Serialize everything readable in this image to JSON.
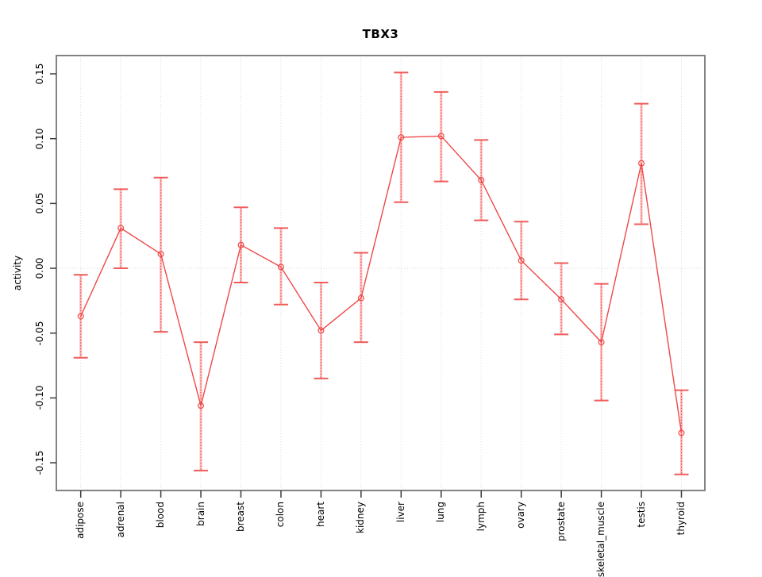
{
  "page": {
    "background": "#ffffff"
  },
  "chart_data": {
    "type": "line",
    "title": "TBX3",
    "ylabel": "activity",
    "xlabel": "",
    "categories": [
      "adipose",
      "adrenal",
      "blood",
      "brain",
      "breast",
      "colon",
      "heart",
      "kidney",
      "liver",
      "lung",
      "lymph",
      "ovary",
      "prostate",
      "skeletal_muscle",
      "testis",
      "thyroid"
    ],
    "series": [
      {
        "name": "TBX3 activity",
        "marker": "open-circle",
        "values": [
          -0.037,
          0.031,
          0.011,
          -0.106,
          0.018,
          0.001,
          -0.048,
          -0.023,
          0.101,
          0.102,
          0.068,
          0.006,
          -0.024,
          -0.057,
          0.081,
          -0.127
        ],
        "lower": [
          -0.069,
          0.0,
          -0.049,
          -0.156,
          -0.011,
          -0.028,
          -0.085,
          -0.057,
          0.051,
          0.067,
          0.037,
          -0.024,
          -0.051,
          -0.102,
          0.034,
          -0.159
        ],
        "upper": [
          -0.005,
          0.061,
          0.07,
          -0.057,
          0.047,
          0.031,
          -0.011,
          0.012,
          0.151,
          0.136,
          0.099,
          0.036,
          0.004,
          -0.012,
          0.127,
          -0.094
        ]
      }
    ],
    "y_ticks": [
      0.15,
      0.1,
      0.05,
      0.0,
      -0.05,
      -0.1,
      -0.15
    ],
    "y_tick_labels": [
      "0.15",
      "0.10",
      "0.05",
      "0.00",
      "-0.05",
      "-0.10",
      "-0.15"
    ],
    "ylim": [
      -0.1714,
      0.1641
    ],
    "grid": {
      "vertical_per_category": true,
      "zero_line_dotted": true
    },
    "legend": "none",
    "colors": {
      "line": "#ef4848",
      "marker": "#ef4848",
      "errorbar_stem_pink": "#ffb0b0",
      "errorbar_stem_dotted": "#e64545",
      "errorbar_cap": "#f15b5b",
      "gridline": "#d8d8d8",
      "zero_line": "#cfcfcf",
      "frame": "#828282",
      "tick": "#3a3a3a",
      "text": "#000000"
    }
  }
}
